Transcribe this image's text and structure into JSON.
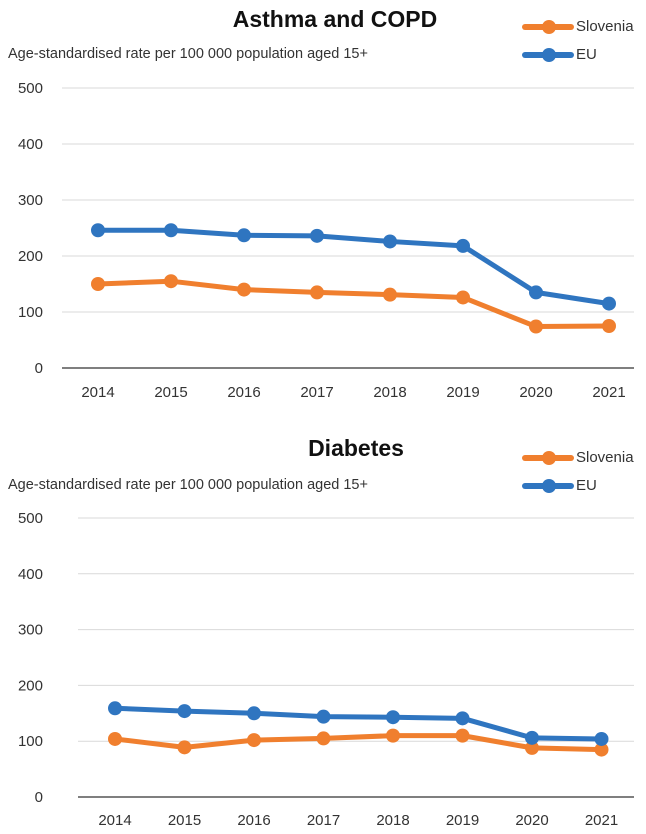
{
  "chart_data": [
    {
      "type": "line",
      "title": "Asthma and COPD",
      "ylabel": "Age-standardised rate per 100 000 population aged 15+",
      "xlabel": "",
      "categories": [
        "2014",
        "2015",
        "2016",
        "2017",
        "2018",
        "2019",
        "2020",
        "2021"
      ],
      "ylim": [
        0,
        500
      ],
      "yticks": [
        "0",
        "100",
        "200",
        "300",
        "400",
        "500"
      ],
      "grid": true,
      "legend_position": "top-right",
      "series": [
        {
          "name": "Slovenia",
          "color": "#f07f2e",
          "values": [
            150,
            155,
            140,
            135,
            131,
            126,
            74,
            75
          ]
        },
        {
          "name": "EU",
          "color": "#2f75c0",
          "values": [
            246,
            246,
            237,
            236,
            226,
            218,
            135,
            115
          ]
        }
      ]
    },
    {
      "type": "line",
      "title": "Diabetes",
      "ylabel": "Age-standardised rate per 100 000 population aged 15+",
      "xlabel": "",
      "categories": [
        "2014",
        "2015",
        "2016",
        "2017",
        "2018",
        "2019",
        "2020",
        "2021"
      ],
      "ylim": [
        0,
        500
      ],
      "yticks": [
        "0",
        "100",
        "200",
        "300",
        "400",
        "500"
      ],
      "grid": true,
      "legend_position": "top-right",
      "series": [
        {
          "name": "Slovenia",
          "color": "#f07f2e",
          "values": [
            104,
            89,
            102,
            105,
            110,
            110,
            88,
            85
          ]
        },
        {
          "name": "EU",
          "color": "#2f75c0",
          "values": [
            159,
            154,
            150,
            144,
            143,
            141,
            106,
            104
          ]
        }
      ]
    }
  ]
}
